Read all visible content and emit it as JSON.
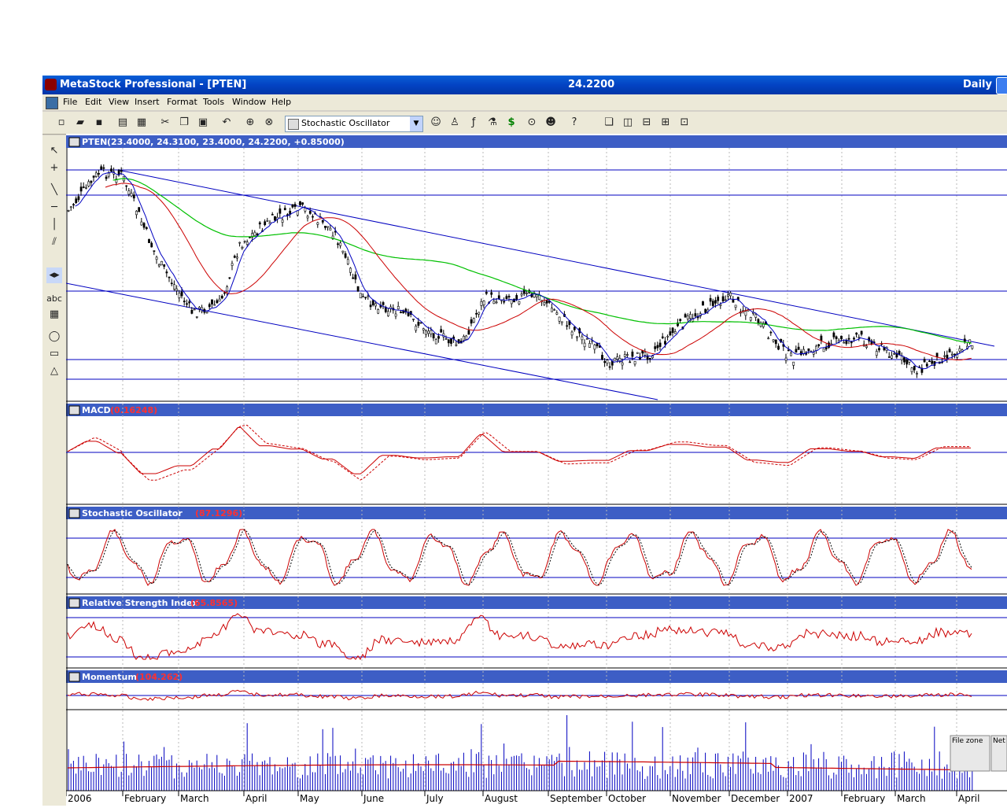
{
  "window": {
    "title": "MetaStock Professional - [PTEN]",
    "last_price": "24.2200",
    "periodicity": "Daily"
  },
  "menu": [
    "File",
    "Edit",
    "View",
    "Insert",
    "Format",
    "Tools",
    "Window",
    "Help"
  ],
  "toolbar": {
    "indicator_select": "Stochastic Oscillator",
    "icons": [
      "new-icon",
      "open-icon",
      "save-icon",
      "print-icon",
      "print-preview-icon",
      "cut-icon",
      "copy-icon",
      "paste-icon",
      "undo-icon",
      "crosshair-icon",
      "zoom-icon",
      "expert-advisor-icon",
      "explorer-icon",
      "indicator-builder-icon",
      "system-tester-icon",
      "dollar-icon",
      "binoculars-icon",
      "people-icon",
      "help-icon",
      "cascade-icon",
      "tile-vertical-icon",
      "tile-horizontal-icon",
      "tile-grid-icon",
      "layout-icon"
    ]
  },
  "left_tools": [
    "pointer-icon",
    "crosshair-icon",
    "trendline-icon",
    "horizontal-line-icon",
    "vertical-line-icon",
    "cycle-lines-icon",
    "scroll-icon",
    "text-icon",
    "table-icon",
    "ellipse-icon",
    "rectangle-icon",
    "triangle-icon"
  ],
  "left_tool_text": "abc",
  "panes": {
    "price": {
      "name": "PTEN",
      "values": "(23.4000, 24.3100, 23.4000, 24.2200, +0.85000)"
    },
    "macd": {
      "name": "MACD",
      "value": "(0.16248)"
    },
    "stochastic": {
      "name": "Stochastic Oscillator",
      "value": "(87.1296)"
    },
    "rsi": {
      "name": "Relative Strength Index",
      "value": "(65.8565)"
    },
    "momentum": {
      "name": "Momentum",
      "value": "(104.262)"
    },
    "volume": {
      "zone_label_1": "File zone",
      "zone_label_2": "Net z"
    }
  },
  "x_axis": [
    {
      "label": "2006",
      "x": 0
    },
    {
      "label": "February",
      "x": 72
    },
    {
      "label": "March",
      "x": 143
    },
    {
      "label": "April",
      "x": 226
    },
    {
      "label": "May",
      "x": 295
    },
    {
      "label": "June",
      "x": 376
    },
    {
      "label": "July",
      "x": 456
    },
    {
      "label": "August",
      "x": 530
    },
    {
      "label": "September",
      "x": 613
    },
    {
      "label": "October",
      "x": 687
    },
    {
      "label": "November",
      "x": 768
    },
    {
      "label": "December",
      "x": 843
    },
    {
      "label": "2007",
      "x": 917
    },
    {
      "label": "February",
      "x": 986
    },
    {
      "label": "March",
      "x": 1054
    },
    {
      "label": "April",
      "x": 1132
    }
  ],
  "colors": {
    "title_blue": "#0343c3",
    "pane_header": "#3d5ec5",
    "axis_blue": "#0000c0",
    "price_red": "#cc0000",
    "ma_green": "#00c000",
    "value_red": "#ff0000"
  }
}
